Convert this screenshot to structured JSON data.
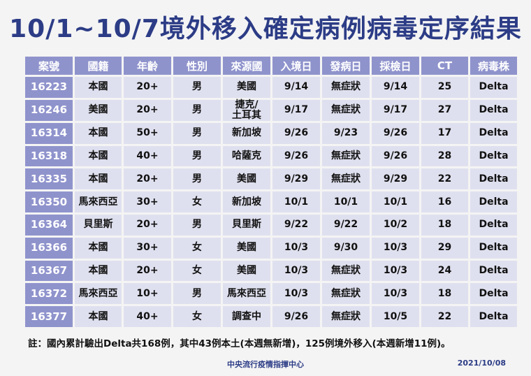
{
  "title": "10/1~10/7境外移入確定病例病毒定序結果",
  "headers": [
    "案號",
    "國籍",
    "年齡",
    "性別",
    "來源國",
    "入境日",
    "發病日",
    "採檢日",
    "CT",
    "病毒株"
  ],
  "rows": [
    [
      "16223",
      "本國",
      "20+",
      "男",
      "美國",
      "9/14",
      "無症狀",
      "9/14",
      "25",
      "Delta"
    ],
    [
      "16246",
      "美國",
      "20+",
      "男",
      "捷克/\n土耳其",
      "9/17",
      "無症狀",
      "9/17",
      "27",
      "Delta"
    ],
    [
      "16314",
      "本國",
      "50+",
      "男",
      "新加坡",
      "9/26",
      "9/23",
      "9/26",
      "17",
      "Delta"
    ],
    [
      "16318",
      "本國",
      "40+",
      "男",
      "哈薩克",
      "9/26",
      "無症狀",
      "9/26",
      "28",
      "Delta"
    ],
    [
      "16335",
      "本國",
      "20+",
      "男",
      "美國",
      "9/29",
      "無症狀",
      "9/29",
      "22",
      "Delta"
    ],
    [
      "16350",
      "馬來西亞",
      "30+",
      "女",
      "新加坡",
      "10/1",
      "10/1",
      "10/1",
      "16",
      "Delta"
    ],
    [
      "16364",
      "貝里斯",
      "20+",
      "男",
      "貝里斯",
      "9/22",
      "9/22",
      "10/2",
      "18",
      "Delta"
    ],
    [
      "16366",
      "本國",
      "30+",
      "女",
      "美國",
      "10/3",
      "9/30",
      "10/3",
      "29",
      "Delta"
    ],
    [
      "16367",
      "本國",
      "20+",
      "女",
      "美國",
      "10/3",
      "無症狀",
      "10/3",
      "24",
      "Delta"
    ],
    [
      "16372",
      "馬來西亞",
      "10+",
      "男",
      "馬來西亞",
      "10/3",
      "無症狀",
      "10/3",
      "18",
      "Delta"
    ],
    [
      "16377",
      "本國",
      "40+",
      "女",
      "調查中",
      "9/26",
      "無症狀",
      "10/5",
      "22",
      "Delta"
    ]
  ],
  "footnote": "註：國內累計驗出Delta共168例，其中43例本土(本週無新增)，125例境外移入(本週新增11例)。",
  "agency": "中央流行疫情指揮中心",
  "date": "2021/10/08",
  "colors": {
    "title": "#2c3c86",
    "header_bg": "#8f93cc",
    "cell_bg": "#dfe0ef",
    "page_bg": "#f4f4f4"
  }
}
